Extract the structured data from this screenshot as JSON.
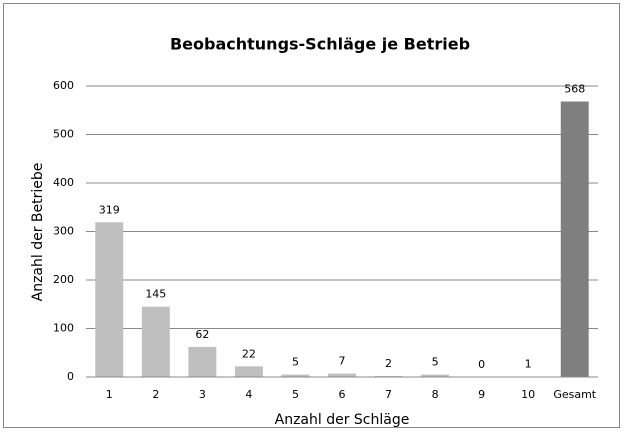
{
  "chart_data": {
    "type": "bar",
    "title": "Beobachtungs-Schläge je Betrieb",
    "x_label": "Anzahl der Schläge",
    "y_label": "Anzahl der Betriebe",
    "categories": [
      "1",
      "2",
      "3",
      "4",
      "5",
      "6",
      "7",
      "8",
      "9",
      "10",
      "Gesamt"
    ],
    "values": [
      319,
      145,
      62,
      22,
      5,
      7,
      2,
      5,
      0,
      1,
      568
    ],
    "colors": [
      "#bfbfbf",
      "#bfbfbf",
      "#bfbfbf",
      "#bfbfbf",
      "#bfbfbf",
      "#bfbfbf",
      "#bfbfbf",
      "#bfbfbf",
      "#bfbfbf",
      "#bfbfbf",
      "#7f7f7f"
    ],
    "ylim": [
      0,
      600
    ],
    "yticks": [
      0,
      100,
      200,
      300,
      400,
      500,
      600
    ],
    "grid": true
  }
}
